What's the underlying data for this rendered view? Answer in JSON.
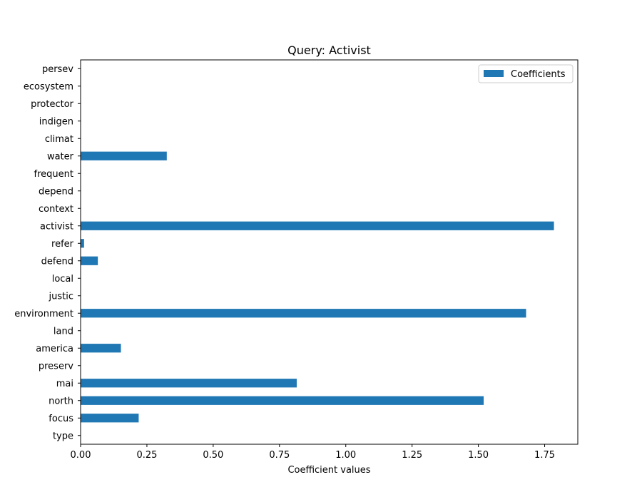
{
  "chart_data": {
    "type": "bar",
    "orientation": "horizontal",
    "title": "Query: Activist",
    "xlabel": "Coefficient values",
    "ylabel": "",
    "xlim": [
      0,
      1.875
    ],
    "xticks": [
      0.0,
      0.25,
      0.5,
      0.75,
      1.0,
      1.25,
      1.5,
      1.75
    ],
    "xtick_labels": [
      "0.00",
      "0.25",
      "0.50",
      "0.75",
      "1.00",
      "1.25",
      "1.50",
      "1.75"
    ],
    "categories": [
      "type",
      "focus",
      "north",
      "mai",
      "preserv",
      "america",
      "land",
      "environment",
      "justic",
      "local",
      "defend",
      "refer",
      "activist",
      "context",
      "depend",
      "frequent",
      "water",
      "climat",
      "indigen",
      "protector",
      "ecosystem",
      "persev"
    ],
    "series": [
      {
        "name": "Coefficients",
        "color": "#1f77b4",
        "values": [
          0,
          0.219,
          1.52,
          0.815,
          0,
          0.152,
          0,
          1.68,
          0,
          0,
          0.065,
          0.013,
          1.785,
          0,
          0,
          0,
          0.325,
          0,
          0,
          0,
          0,
          0
        ]
      }
    ],
    "legend_position": "top-right",
    "grid": false
  }
}
